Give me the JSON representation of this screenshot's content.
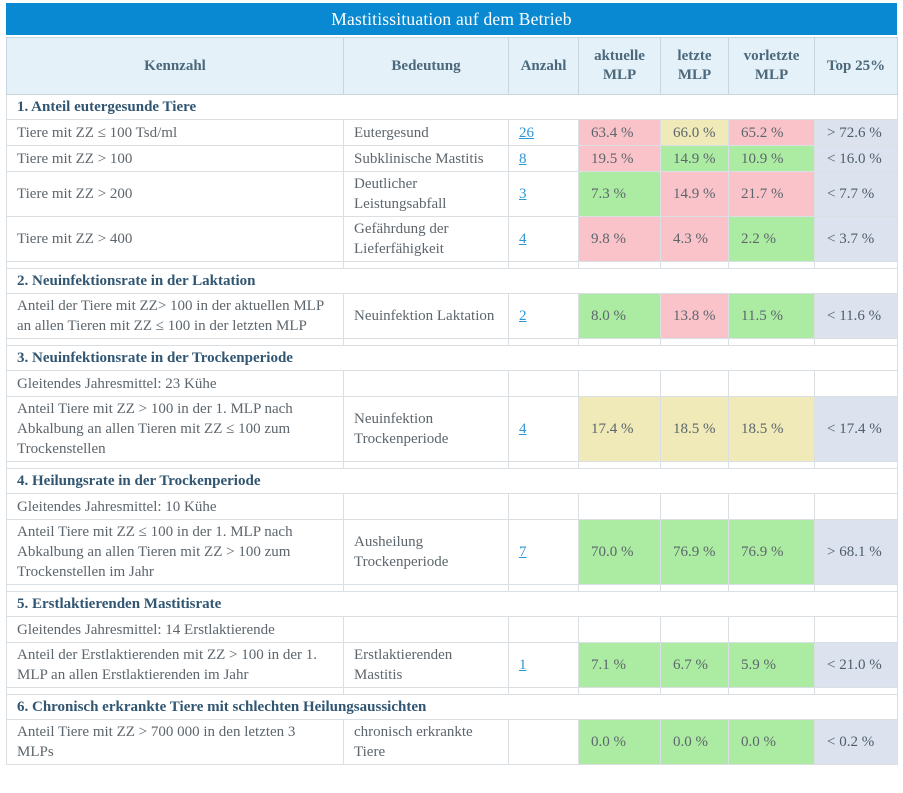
{
  "title": "Mastitissituation auf dem Betrieb",
  "columns": {
    "kennzahl": "Kennzahl",
    "bedeutung": "Bedeutung",
    "anzahl": "Anzahl",
    "aktuelle": "aktuelle MLP",
    "letzte": "letzte MLP",
    "vorletzte": "vorletzte MLP",
    "top25": "Top 25%"
  },
  "colors": {
    "title-bar": "#0989d1",
    "header-bg": "#e4f1f9",
    "good": "#aceca2",
    "warn": "#efeab8",
    "bad": "#f9c3c9",
    "top": "#dce3ee",
    "link": "#2f96d4",
    "section": "#315672",
    "body": "#5d666d"
  },
  "sections": [
    {
      "heading": "1. Anteil eutergesunde Tiere",
      "rows": [
        {
          "kennzahl": "Tiere mit ZZ ≤ 100 Tsd/ml",
          "bedeutung": "Eutergesund",
          "anzahl": "26",
          "mlp": [
            {
              "v": "63.4 %",
              "s": "bad"
            },
            {
              "v": "66.0 %",
              "s": "warn"
            },
            {
              "v": "65.2 %",
              "s": "bad"
            }
          ],
          "top25": "> 72.6 %"
        },
        {
          "kennzahl": "Tiere mit ZZ > 100",
          "bedeutung": "Subklinische Mastitis",
          "anzahl": "8",
          "mlp": [
            {
              "v": "19.5 %",
              "s": "bad"
            },
            {
              "v": "14.9 %",
              "s": "good"
            },
            {
              "v": "10.9 %",
              "s": "good"
            }
          ],
          "top25": "< 16.0 %"
        },
        {
          "kennzahl": "Tiere mit ZZ > 200",
          "bedeutung": "Deutlicher Leistungsabfall",
          "anzahl": "3",
          "mlp": [
            {
              "v": "7.3 %",
              "s": "good"
            },
            {
              "v": "14.9 %",
              "s": "bad"
            },
            {
              "v": "21.7 %",
              "s": "bad"
            }
          ],
          "top25": "< 7.7 %"
        },
        {
          "kennzahl": "Tiere mit ZZ > 400",
          "bedeutung": "Gefährdung der Lieferfähigkeit",
          "anzahl": "4",
          "mlp": [
            {
              "v": "9.8 %",
              "s": "bad"
            },
            {
              "v": "4.3 %",
              "s": "bad"
            },
            {
              "v": "2.2 %",
              "s": "good"
            }
          ],
          "top25": "< 3.7 %"
        }
      ]
    },
    {
      "heading": "2. Neuinfektionsrate in der Laktation",
      "rows": [
        {
          "kennzahl": "Anteil der Tiere mit ZZ> 100 in der aktuellen MLP an allen Tieren mit ZZ ≤ 100 in der letzten MLP",
          "bedeutung": "Neuinfektion Laktation",
          "anzahl": "2",
          "mlp": [
            {
              "v": "8.0 %",
              "s": "good"
            },
            {
              "v": "13.8 %",
              "s": "bad"
            },
            {
              "v": "11.5 %",
              "s": "good"
            }
          ],
          "top25": "< 11.6 %"
        }
      ]
    },
    {
      "heading": "3. Neuinfektionsrate in der Trockenperiode",
      "rows": [
        {
          "kennzahl": "Gleitendes Jahresmittel: 23 Kühe",
          "note": true
        },
        {
          "kennzahl": "Anteil Tiere mit ZZ > 100 in der 1. MLP nach Abkalbung an allen Tieren mit ZZ ≤ 100 zum Trockenstellen",
          "bedeutung": "Neuinfektion Trockenperiode",
          "anzahl": "4",
          "mlp": [
            {
              "v": "17.4 %",
              "s": "warn"
            },
            {
              "v": "18.5 %",
              "s": "warn"
            },
            {
              "v": "18.5 %",
              "s": "warn"
            }
          ],
          "top25": "< 17.4 %"
        }
      ]
    },
    {
      "heading": "4. Heilungsrate in der Trockenperiode",
      "rows": [
        {
          "kennzahl": "Gleitendes Jahresmittel: 10 Kühe",
          "note": true
        },
        {
          "kennzahl": "Anteil Tiere mit ZZ ≤ 100 in der 1. MLP nach Abkalbung an allen Tieren mit ZZ > 100 zum Trockenstellen im Jahr",
          "bedeutung": "Ausheilung Trockenperiode",
          "anzahl": "7",
          "mlp": [
            {
              "v": "70.0 %",
              "s": "good"
            },
            {
              "v": "76.9 %",
              "s": "good"
            },
            {
              "v": "76.9 %",
              "s": "good"
            }
          ],
          "top25": "> 68.1 %"
        }
      ]
    },
    {
      "heading": "5. Erstlaktierenden Mastitisrate",
      "rows": [
        {
          "kennzahl": "Gleitendes Jahresmittel: 14 Erstlaktierende",
          "note": true
        },
        {
          "kennzahl": "Anteil der Erstlaktierenden mit ZZ > 100 in der 1. MLP an allen Erstlaktierenden im Jahr",
          "bedeutung": "Erstlaktierenden Mastitis",
          "anzahl": "1",
          "mlp": [
            {
              "v": "7.1 %",
              "s": "good"
            },
            {
              "v": "6.7 %",
              "s": "good"
            },
            {
              "v": "5.9 %",
              "s": "good"
            }
          ],
          "top25": "< 21.0 %"
        }
      ]
    },
    {
      "heading": "6. Chronisch erkrankte Tiere mit schlechten Heilungsaussichten",
      "rows": [
        {
          "kennzahl": "Anteil Tiere mit ZZ > 700 000 in den letzten 3 MLPs",
          "bedeutung": "chronisch erkrankte Tiere",
          "anzahl": "",
          "mlp": [
            {
              "v": "0.0 %",
              "s": "good"
            },
            {
              "v": "0.0 %",
              "s": "good"
            },
            {
              "v": "0.0 %",
              "s": "good"
            }
          ],
          "top25": "< 0.2 %"
        }
      ]
    }
  ]
}
